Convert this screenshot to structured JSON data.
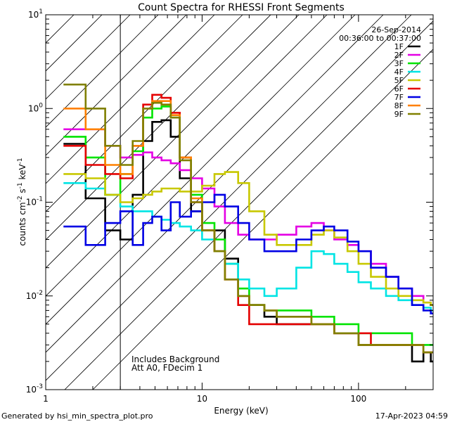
{
  "chart_data": {
    "type": "line",
    "title": "Count Spectra for RHESSI Front Segments",
    "xlabel": "Energy (keV)",
    "ylabel": "counts cm",
    "ylabel_exp1": "-2",
    "ylabel_mid": " s",
    "ylabel_exp2": "-1",
    "ylabel_end": " keV",
    "ylabel_exp3": "-1",
    "xscale": "log",
    "yscale": "log",
    "xlim": [
      1,
      300
    ],
    "ylim": [
      0.001,
      10
    ],
    "x_ticks": [
      {
        "value": 1,
        "label": "1"
      },
      {
        "value": 10,
        "label": "10"
      },
      {
        "value": 100,
        "label": "100"
      }
    ],
    "y_ticks": [
      {
        "value": 0.001,
        "base": "10",
        "exp": "-3"
      },
      {
        "value": 0.01,
        "base": "10",
        "exp": "-2"
      },
      {
        "value": 0.1,
        "base": "10",
        "exp": "-1"
      },
      {
        "value": 1,
        "base": "10",
        "exp": "0"
      },
      {
        "value": 10,
        "base": "10",
        "exp": "1"
      }
    ],
    "attenuator_cutoff_kev": 3,
    "date": "26-Sep-2014",
    "time_range": "00:36:00 to 00:37:00",
    "notes": [
      "Includes Background",
      "Att A0, FDecim 1"
    ],
    "footer_left": "Generated by hsi_min_spectra_plot.pro",
    "footer_right": "17-Apr-2023 04:59",
    "legend_position": "top-right",
    "x": [
      1.3,
      1.8,
      2.4,
      3.0,
      3.6,
      4.2,
      4.8,
      5.5,
      6.3,
      7.2,
      8.5,
      10,
      12,
      14,
      17,
      20,
      25,
      30,
      40,
      50,
      60,
      70,
      85,
      100,
      120,
      150,
      180,
      220,
      260,
      290
    ],
    "series": [
      {
        "name": "1F",
        "color": "#000000",
        "values": [
          0.42,
          0.11,
          0.05,
          0.04,
          0.12,
          0.45,
          0.72,
          0.75,
          0.5,
          0.18,
          0.08,
          0.05,
          0.05,
          0.025,
          0.01,
          0.008,
          0.006,
          0.005,
          0.005,
          0.005,
          0.005,
          0.004,
          0.004,
          0.003,
          0.003,
          0.003,
          0.003,
          0.002,
          0.0025,
          0.002
        ]
      },
      {
        "name": "2F",
        "color": "#e400e4",
        "values": [
          0.6,
          0.6,
          0.4,
          0.3,
          0.32,
          0.34,
          0.3,
          0.28,
          0.26,
          0.22,
          0.18,
          0.14,
          0.09,
          0.06,
          0.045,
          0.04,
          0.04,
          0.045,
          0.055,
          0.06,
          0.05,
          0.04,
          0.035,
          0.03,
          0.022,
          0.016,
          0.012,
          0.01,
          0.0085,
          0.008
        ]
      },
      {
        "name": "3F",
        "color": "#00e400",
        "values": [
          0.5,
          0.3,
          0.12,
          0.2,
          0.35,
          0.8,
          1.0,
          1.05,
          0.8,
          0.3,
          0.12,
          0.06,
          0.04,
          0.022,
          0.012,
          0.008,
          0.007,
          0.007,
          0.007,
          0.006,
          0.006,
          0.005,
          0.005,
          0.004,
          0.004,
          0.004,
          0.004,
          0.003,
          0.003,
          0.003
        ]
      },
      {
        "name": "4F",
        "color": "#00e4e4",
        "values": [
          0.16,
          0.14,
          0.12,
          0.09,
          0.08,
          0.08,
          0.07,
          0.065,
          0.06,
          0.055,
          0.05,
          0.04,
          0.03,
          0.022,
          0.015,
          0.012,
          0.01,
          0.012,
          0.02,
          0.03,
          0.028,
          0.022,
          0.018,
          0.014,
          0.012,
          0.01,
          0.009,
          0.008,
          0.0075,
          0.007
        ]
      },
      {
        "name": "5F",
        "color": "#c8c800",
        "values": [
          0.2,
          0.18,
          0.12,
          0.1,
          0.11,
          0.12,
          0.13,
          0.14,
          0.14,
          0.13,
          0.13,
          0.15,
          0.2,
          0.21,
          0.16,
          0.08,
          0.045,
          0.035,
          0.035,
          0.045,
          0.05,
          0.042,
          0.03,
          0.022,
          0.016,
          0.012,
          0.01,
          0.009,
          0.0085,
          0.008
        ]
      },
      {
        "name": "6F",
        "color": "#e40000",
        "values": [
          0.4,
          0.25,
          0.2,
          0.18,
          0.4,
          1.1,
          1.4,
          1.3,
          0.9,
          0.3,
          0.1,
          0.05,
          0.03,
          0.015,
          0.008,
          0.005,
          0.005,
          0.005,
          0.005,
          0.005,
          0.005,
          0.004,
          0.004,
          0.004,
          0.003,
          0.003,
          0.003,
          0.003,
          0.0025,
          0.0025
        ]
      },
      {
        "name": "7F",
        "color": "#0000e4",
        "values": [
          0.055,
          0.035,
          0.06,
          0.08,
          0.035,
          0.06,
          0.07,
          0.05,
          0.1,
          0.07,
          0.08,
          0.1,
          0.12,
          0.09,
          0.06,
          0.04,
          0.03,
          0.03,
          0.04,
          0.05,
          0.055,
          0.05,
          0.038,
          0.03,
          0.02,
          0.016,
          0.012,
          0.008,
          0.007,
          0.0065
        ]
      },
      {
        "name": "8F",
        "color": "#ff8000",
        "values": [
          1.0,
          0.6,
          0.25,
          0.2,
          0.4,
          1.0,
          1.2,
          1.2,
          0.85,
          0.3,
          0.11,
          0.05,
          0.03,
          0.015,
          0.01,
          0.008,
          0.007,
          0.006,
          0.006,
          0.005,
          0.005,
          0.004,
          0.004,
          0.003,
          0.003,
          0.003,
          0.003,
          0.003,
          0.0025,
          0.0025
        ]
      },
      {
        "name": "9F",
        "color": "#808000",
        "values": [
          1.8,
          1.0,
          0.4,
          0.25,
          0.45,
          1.0,
          1.15,
          1.1,
          0.8,
          0.28,
          0.1,
          0.05,
          0.03,
          0.015,
          0.01,
          0.008,
          0.007,
          0.006,
          0.006,
          0.005,
          0.005,
          0.004,
          0.004,
          0.003,
          0.003,
          0.003,
          0.003,
          0.003,
          0.0025,
          0.0025
        ]
      }
    ]
  }
}
